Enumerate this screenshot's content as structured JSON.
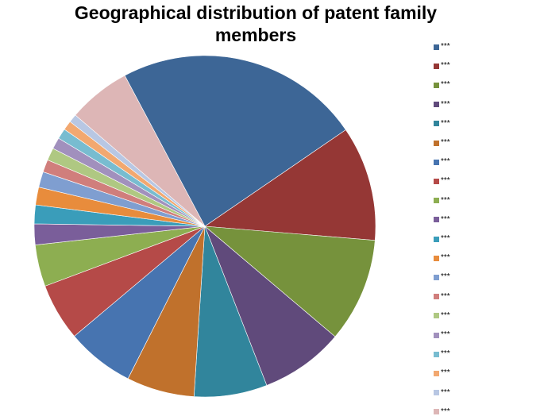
{
  "chart_data": {
    "type": "pie",
    "title_lines": [
      "Geographical distribution of patent family",
      "members"
    ],
    "categories": [
      "***",
      "***",
      "***",
      "***",
      "***",
      "***",
      "***",
      "***",
      "***",
      "***",
      "***",
      "***",
      "***",
      "***",
      "***",
      "***",
      "***",
      "***",
      "***",
      "***"
    ],
    "values": [
      23.5,
      11.0,
      10.0,
      8.0,
      7.0,
      6.5,
      6.5,
      5.5,
      4.0,
      2.0,
      1.8,
      1.7,
      1.5,
      1.2,
      1.2,
      1.1,
      1.0,
      0.9,
      0.8,
      6.0
    ],
    "colors": [
      "#3D6696",
      "#953735",
      "#76923C",
      "#604A7B",
      "#31859C",
      "#C0712C",
      "#4774B0",
      "#B54A48",
      "#8DAE51",
      "#7A5E9A",
      "#3A9DBA",
      "#E88C3C",
      "#7F9ED0",
      "#D07E7C",
      "#AFC882",
      "#A190BD",
      "#78BCD0",
      "#F2A870",
      "#B8C7E3",
      "#DDB6B6"
    ],
    "legend_position": "right"
  }
}
